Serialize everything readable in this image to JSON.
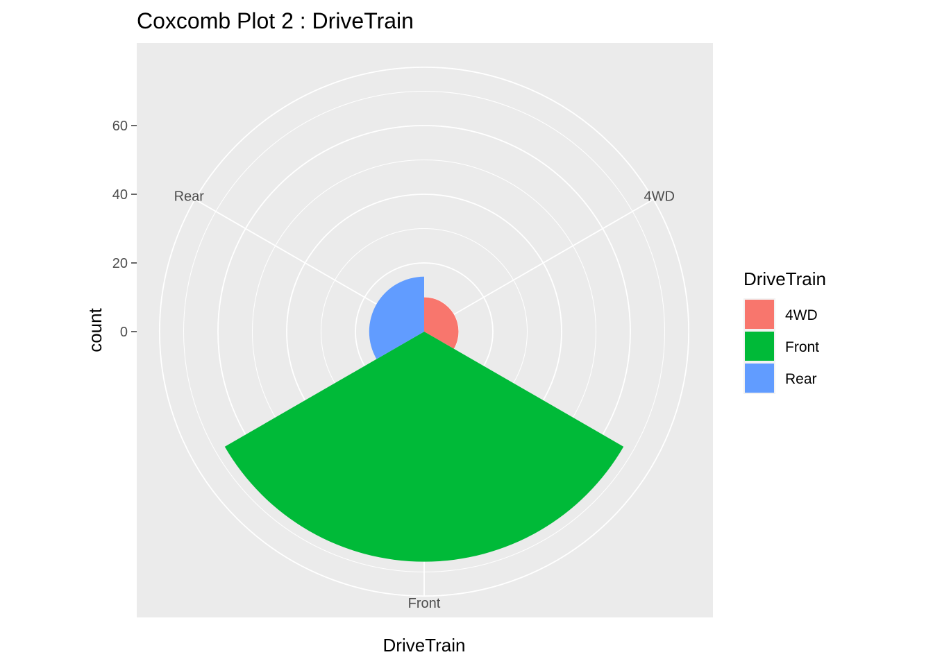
{
  "chart_data": {
    "type": "bar",
    "subtype": "coxcomb",
    "title": "Coxcomb Plot 2 : DriveTrain",
    "xlabel": "DriveTrain",
    "ylabel": "count",
    "categories": [
      "4WD",
      "Front",
      "Rear"
    ],
    "values": [
      10,
      67,
      16
    ],
    "colors": [
      "#F8766D",
      "#00BA38",
      "#619CFF"
    ],
    "ylim": [
      0,
      77
    ],
    "yticks": [
      0,
      20,
      40,
      60
    ],
    "grid": true,
    "legend": {
      "title": "DriveTrain",
      "position": "right",
      "entries": [
        "4WD",
        "Front",
        "Rear"
      ]
    }
  }
}
